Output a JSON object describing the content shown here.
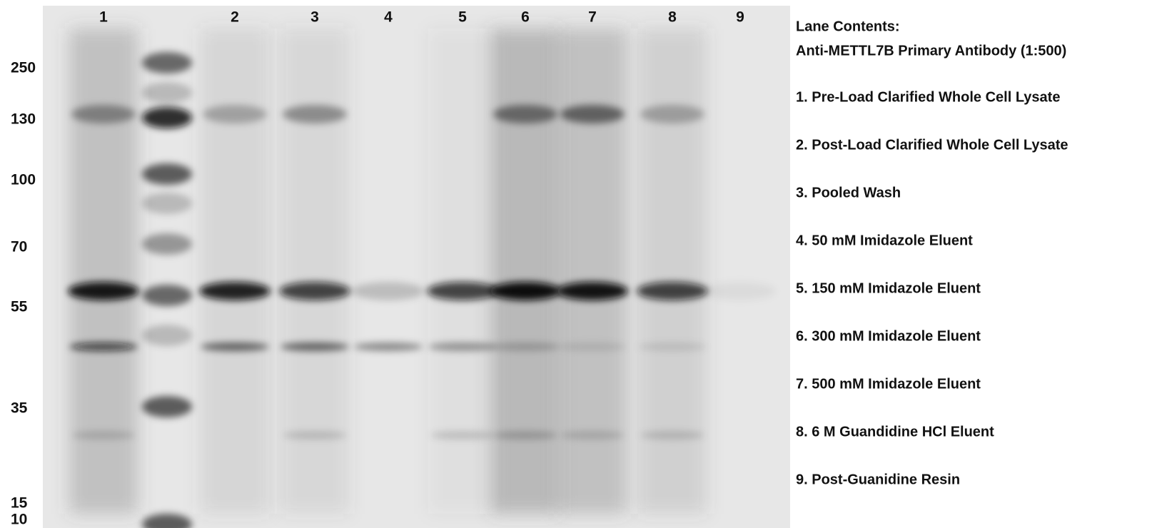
{
  "lane_labels": [
    "1",
    "2",
    "3",
    "4",
    "5",
    "6",
    "7",
    "8",
    "9"
  ],
  "mw_markers": [
    "250",
    "130",
    "100",
    "70",
    "55",
    "35",
    "15",
    "10"
  ],
  "legend": {
    "title": "Lane Contents:",
    "subtitle": "Anti-METTL7B Primary Antibody (1:500)",
    "items": [
      "1. Pre-Load Clarified Whole Cell Lysate",
      "2. Post-Load Clarified Whole Cell Lysate",
      "3. Pooled Wash",
      "4. 50 mM Imidazole Eluent",
      "5. 150 mM Imidazole Eluent",
      "6. 300 mM Imidazole Eluent",
      "7. 500 mM Imidazole Eluent",
      "8. 6 M Guandidine HCl Eluent",
      "9. Post-Guanidine Resin"
    ]
  }
}
